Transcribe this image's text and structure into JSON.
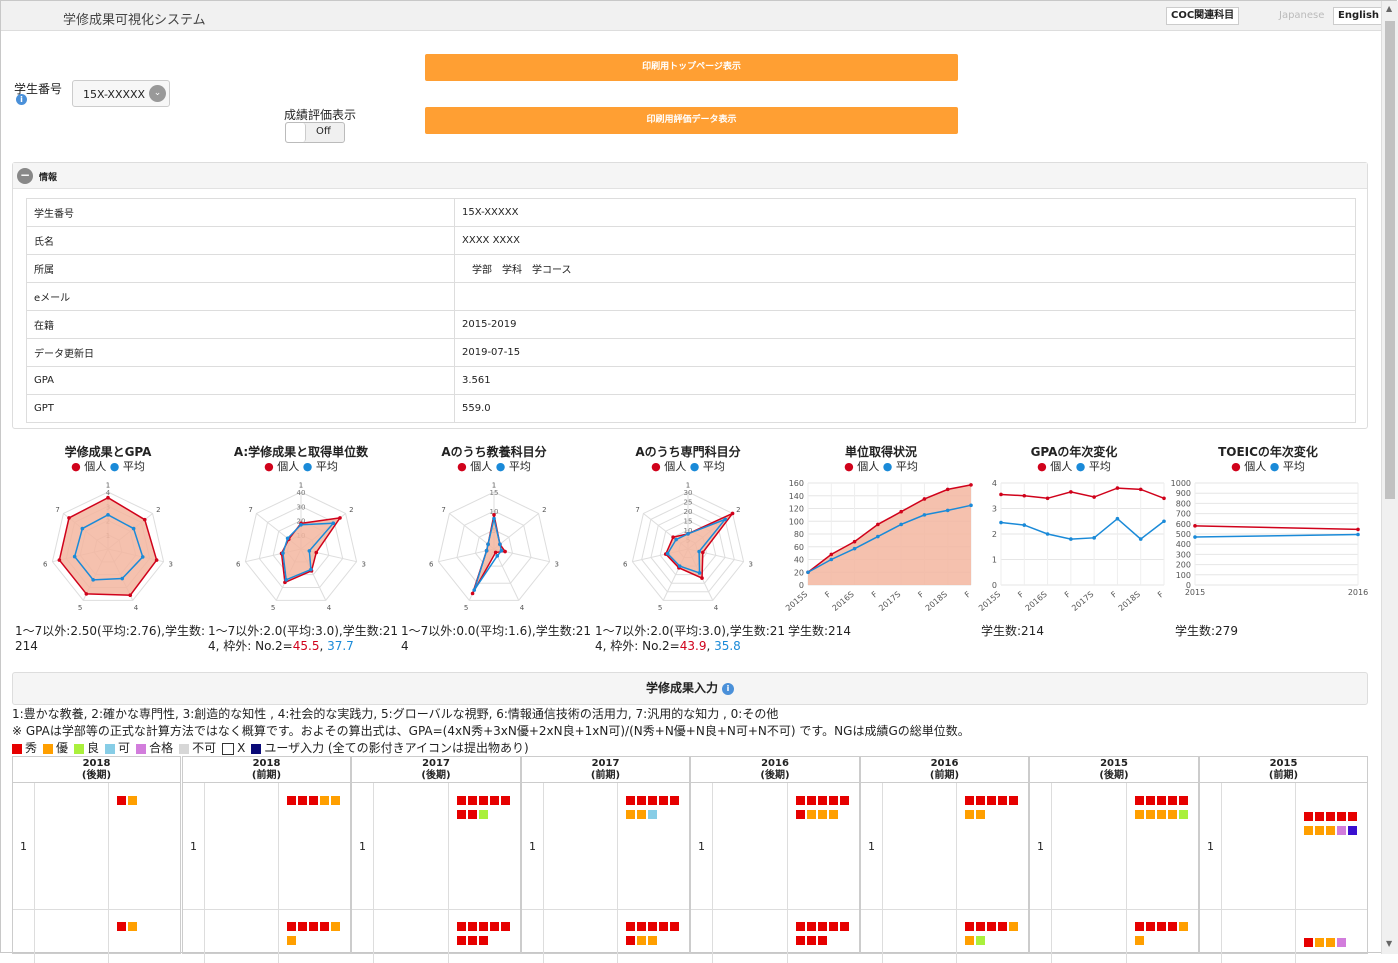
{
  "app_title": "学修成果可視化システム",
  "header": {
    "coc_button": "COC関連科目",
    "lang_ja": "Japanese",
    "lang_en": "English"
  },
  "student": {
    "label": "学生番号",
    "selected": "15X-XXXXX"
  },
  "eval_toggle": {
    "label": "成績評価表示",
    "state": "Off"
  },
  "buttons": {
    "print_top": "印刷用トップページ表示",
    "print_data": "印刷用評価データ表示"
  },
  "info_panel": {
    "title": "情報",
    "rows": [
      {
        "key": "学生番号",
        "value": "15X-XXXXX"
      },
      {
        "key": "氏名",
        "value": "XXXX XXXX"
      },
      {
        "key": "所属",
        "value": "　学部　学科　学コース"
      },
      {
        "key": "eメール",
        "value": ""
      },
      {
        "key": "在籍",
        "value": "2015-2019"
      },
      {
        "key": "データ更新日",
        "value": "2019-07-15"
      },
      {
        "key": "GPA",
        "value": "3.561"
      },
      {
        "key": "GPT",
        "value": "559.0"
      }
    ]
  },
  "legend_labels": {
    "individual": "個人",
    "average": "平均"
  },
  "colors": {
    "individual": "#d0021b",
    "average": "#1a8ad8",
    "fill": "#f3b6a0",
    "orange": "#ff9f33"
  },
  "chart_data": [
    {
      "type": "radar",
      "title": "学修成果とGPA",
      "axes": [
        "1",
        "2",
        "3",
        "4",
        "5",
        "6",
        "7"
      ],
      "rmax": 4,
      "ticks": [
        "1",
        "2",
        "3",
        "4"
      ],
      "series": [
        {
          "name": "個人",
          "values": [
            3.6,
            3.3,
            3.5,
            3.6,
            3.5,
            3.5,
            3.5
          ]
        },
        {
          "name": "平均",
          "values": [
            2.4,
            2.3,
            2.5,
            2.3,
            2.4,
            2.4,
            2.3
          ]
        }
      ]
    },
    {
      "type": "radar",
      "title": "A:学修成果と取得単位数",
      "axes": [
        "1",
        "2",
        "3",
        "4",
        "5",
        "6",
        "7"
      ],
      "rmax": 40,
      "ticks": [
        "10",
        "20",
        "30",
        "40"
      ],
      "series": [
        {
          "name": "個人",
          "values": [
            18,
            35,
            11,
            17,
            26,
            14,
            11
          ]
        },
        {
          "name": "平均",
          "values": [
            17,
            29,
            6,
            16,
            24,
            13,
            12
          ]
        }
      ]
    },
    {
      "type": "radar",
      "title": "Aのうち教養科目分",
      "axes": [
        "1",
        "2",
        "3",
        "4",
        "5",
        "6",
        "7"
      ],
      "rmax": 15,
      "ticks": [
        "5",
        "10",
        "15"
      ],
      "series": [
        {
          "name": "個人",
          "values": [
            9,
            2,
            3,
            1,
            13,
            2,
            2
          ]
        },
        {
          "name": "平均",
          "values": [
            8,
            2,
            2,
            2,
            12,
            2,
            2
          ]
        }
      ]
    },
    {
      "type": "radar",
      "title": "Aのうち専門科目分",
      "axes": [
        "1",
        "2",
        "3",
        "4",
        "5",
        "6",
        "7"
      ],
      "rmax": 30,
      "ticks": [
        "5",
        "10",
        "15",
        "20",
        "25",
        "30"
      ],
      "series": [
        {
          "name": "個人",
          "values": [
            8,
            30,
            8,
            17,
            11,
            12,
            10
          ]
        },
        {
          "name": "平均",
          "values": [
            8,
            25,
            6,
            14,
            10,
            11,
            8
          ]
        }
      ]
    },
    {
      "type": "area_line",
      "title": "単位取得状況",
      "categories": [
        "2015S",
        "F",
        "2016S",
        "F",
        "2017S",
        "F",
        "2018S",
        "F"
      ],
      "ylim": [
        0,
        160
      ],
      "yticks": [
        0,
        20,
        40,
        60,
        80,
        100,
        120,
        140,
        160
      ],
      "series": [
        {
          "name": "個人",
          "values": [
            20,
            48,
            68,
            95,
            115,
            135,
            150,
            157
          ]
        },
        {
          "name": "平均",
          "values": [
            20,
            40,
            57,
            76,
            95,
            110,
            117,
            125
          ]
        }
      ]
    },
    {
      "type": "line",
      "title": "GPAの年次変化",
      "categories": [
        "2015S",
        "F",
        "2016S",
        "F",
        "2017S",
        "F",
        "2018S",
        "F"
      ],
      "ylim": [
        0,
        4
      ],
      "yticks": [
        0,
        1,
        2,
        3,
        4
      ],
      "series": [
        {
          "name": "個人",
          "values": [
            3.55,
            3.5,
            3.4,
            3.65,
            3.45,
            3.8,
            3.75,
            3.4
          ]
        },
        {
          "name": "平均",
          "values": [
            2.45,
            2.35,
            2.0,
            1.8,
            1.85,
            2.6,
            1.8,
            2.5
          ]
        }
      ]
    },
    {
      "type": "line",
      "title": "TOEICの年次変化",
      "categories": [
        "2015",
        "2016"
      ],
      "ylim": [
        0,
        1000
      ],
      "yticks": [
        0,
        100,
        200,
        300,
        400,
        500,
        600,
        700,
        800,
        900,
        1000
      ],
      "series": [
        {
          "name": "個人",
          "values": [
            580,
            545
          ]
        },
        {
          "name": "平均",
          "values": [
            470,
            495
          ]
        }
      ]
    }
  ],
  "chart_stats": [
    {
      "text": "1～7以外:2.50(平均:2.76),学生数:214"
    },
    {
      "text": "1～7以外:2.0(平均:3.0),学生数:214, 枠外: No.2=",
      "red": "45.5",
      "sep": ", ",
      "blue": "37.7"
    },
    {
      "text": "1～7以外:0.0(平均:1.6),学生数:214"
    },
    {
      "text": "1～7以外:2.0(平均:3.0),学生数:214, 枠外: No.2=",
      "red": "43.9",
      "sep": ", ",
      "blue": "35.8"
    },
    {
      "text": "学生数:214"
    },
    {
      "text": "学生数:214"
    },
    {
      "text": "学生数:279"
    }
  ],
  "input_section": {
    "title": "学修成果入力",
    "line1": "1:豊かな教養, 2:確かな専門性, 3:創造的な知性 , 4:社会的な実践力, 5:グローバルな視野, 6:情報通信技術の活用力, 7:汎用的な知力 , 0:その他",
    "line2": "※ GPAは学部等の正式な計算方法ではなく概算です。およその算出式は、GPA=(4xN秀+3xN優+2xN良+1xN可)/(N秀+N優+N良+N可+N不可) です。NGは成績Gの総単位数。",
    "grades": [
      {
        "label": "秀",
        "color": "#e60000"
      },
      {
        "label": "優",
        "color": "#ff9f00"
      },
      {
        "label": "良",
        "color": "#aaf03c"
      },
      {
        "label": "可",
        "color": "#87cde6"
      },
      {
        "label": "合格",
        "color": "#d27ddc"
      },
      {
        "label": "不可",
        "color": "#d7d7d7"
      },
      {
        "label": "X",
        "color": "#ffffff"
      },
      {
        "label": "ユーザ入力 (全ての影付きアイコンは提出物あり)",
        "color": "#0a0a78"
      }
    ]
  },
  "semesters": [
    {
      "year": "2018",
      "term": "(後期)",
      "row_label": "1",
      "blocks": [
        [
          "red",
          "orange"
        ],
        [
          "red",
          "orange"
        ]
      ]
    },
    {
      "year": "2018",
      "term": "(前期)",
      "row_label": "1",
      "blocks": [
        [
          "red",
          "red",
          "red",
          "orange",
          "orange"
        ],
        [
          "red",
          "red",
          "red",
          "red",
          "orange",
          "orange"
        ]
      ]
    },
    {
      "year": "2017",
      "term": "(後期)",
      "row_label": "1",
      "blocks": [
        [
          "red",
          "red",
          "red",
          "red",
          "red",
          "red",
          "red",
          "lime"
        ],
        [
          "red",
          "red",
          "red",
          "red",
          "red",
          "red",
          "red",
          "red"
        ]
      ]
    },
    {
      "year": "2017",
      "term": "(前期)",
      "row_label": "1",
      "blocks": [
        [
          "red",
          "red",
          "red",
          "red",
          "red",
          "orange",
          "orange",
          "sky"
        ],
        [
          "red",
          "red",
          "red",
          "red",
          "red",
          "red",
          "orange",
          "orange"
        ]
      ]
    },
    {
      "year": "2016",
      "term": "(後期)",
      "row_label": "1",
      "blocks": [
        [
          "red",
          "red",
          "red",
          "red",
          "red",
          "red",
          "orange",
          "orange",
          "orange"
        ],
        [
          "red",
          "red",
          "red",
          "red",
          "red",
          "red",
          "red",
          "red"
        ]
      ]
    },
    {
      "year": "2016",
      "term": "(前期)",
      "row_label": "1",
      "blocks": [
        [
          "red",
          "red",
          "red",
          "red",
          "red",
          "orange",
          "orange"
        ],
        [
          "red",
          "red",
          "red",
          "red",
          "orange",
          "orange",
          "lime"
        ]
      ]
    },
    {
      "year": "2015",
      "term": "(後期)",
      "row_label": "1",
      "blocks": [
        [
          "red",
          "red",
          "red",
          "red",
          "red",
          "orange",
          "orange",
          "orange",
          "orange",
          "lime"
        ],
        [
          "red",
          "red",
          "red",
          "red",
          "orange",
          "orange"
        ]
      ]
    },
    {
      "year": "2015",
      "term": "(前期)",
      "row_label": "1",
      "blocks": [
        [
          "red",
          "red",
          "red",
          "red",
          "red",
          "orange",
          "orange",
          "orange",
          "pink",
          "navy"
        ],
        [
          "red",
          "orange",
          "orange",
          "pink"
        ]
      ]
    }
  ]
}
